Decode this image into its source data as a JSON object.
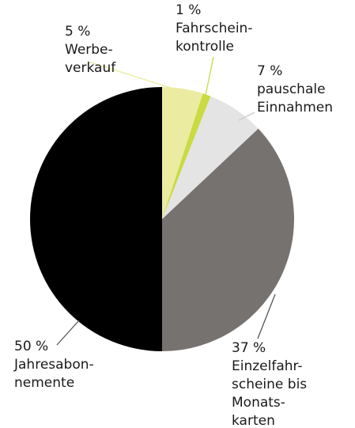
{
  "chart_data": {
    "type": "pie",
    "categories": [
      [
        "Werbe-",
        "verkauf"
      ],
      [
        "Fahrschein-",
        "kontrolle"
      ],
      [
        "pauschale",
        "Einnahmen"
      ],
      [
        "Einzelfahr-",
        "scheine bis",
        "Monats-",
        "karten"
      ],
      [
        "Jahresabon-",
        "nemente"
      ]
    ],
    "values": [
      5,
      1,
      7,
      37,
      50
    ],
    "value_labels": [
      "5 %",
      "1 %",
      "7 %",
      "37 %",
      "50 %"
    ],
    "colors": [
      "#ebeca2",
      "#c9da42",
      "#e4e4e4",
      "#767270",
      "#000000"
    ]
  }
}
